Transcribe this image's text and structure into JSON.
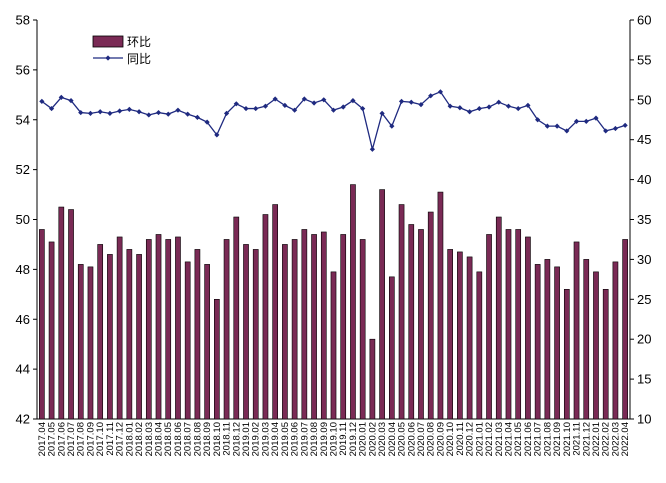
{
  "chart_data": {
    "type": "bar+line",
    "legend": {
      "bar_label": "环比",
      "line_label": "同比",
      "placement": "top-left"
    },
    "colors": {
      "bar": "#7a2a55",
      "bar_edge": "#000000",
      "line": "#1f2a80",
      "marker": "#1f2a80"
    },
    "categories": [
      "2017.04",
      "2017.05",
      "2017.06",
      "2017.07",
      "2017.08",
      "2017.09",
      "2017.10",
      "2017.11",
      "2017.12",
      "2018.01",
      "2018.02",
      "2018.03",
      "2018.04",
      "2018.05",
      "2018.06",
      "2018.07",
      "2018.08",
      "2018.09",
      "2018.10",
      "2018.11",
      "2018.12",
      "2019.01",
      "2019.02",
      "2019.03",
      "2019.04",
      "2019.05",
      "2019.06",
      "2019.07",
      "2019.08",
      "2019.09",
      "2019.10",
      "2019.11",
      "2019.12",
      "2020.01",
      "2020.02",
      "2020.03",
      "2020.04",
      "2020.05",
      "2020.06",
      "2020.07",
      "2020.08",
      "2020.09",
      "2020.10",
      "2020.11",
      "2020.12",
      "2021.01",
      "2021.02",
      "2021.03",
      "2021.04",
      "2021.05",
      "2021.06",
      "2021.07",
      "2021.08",
      "2021.09",
      "2021.10",
      "2021.11",
      "2021.12",
      "2022.01",
      "2022.02",
      "2022.03",
      "2022.04"
    ],
    "series": [
      {
        "name": "环比",
        "type": "bar",
        "axis": "left",
        "values": [
          49.6,
          49.1,
          50.5,
          50.4,
          48.2,
          48.1,
          49.0,
          48.6,
          49.3,
          48.8,
          48.6,
          49.2,
          49.4,
          49.2,
          49.3,
          48.3,
          48.8,
          48.2,
          46.8,
          49.2,
          50.1,
          49.0,
          48.8,
          50.2,
          50.6,
          49.0,
          49.2,
          49.6,
          49.4,
          49.5,
          47.9,
          49.4,
          51.4,
          49.2,
          45.2,
          51.2,
          47.7,
          50.6,
          49.8,
          49.6,
          50.3,
          51.1,
          48.8,
          48.7,
          48.5,
          47.9,
          49.4,
          50.1,
          49.6,
          49.6,
          49.3,
          48.2,
          48.4,
          48.1,
          47.2,
          49.1,
          48.4,
          47.9,
          47.2,
          48.3,
          49.2
        ]
      },
      {
        "name": "同比",
        "type": "line",
        "axis": "right",
        "values": [
          49.8,
          48.9,
          50.3,
          49.9,
          48.4,
          48.3,
          48.5,
          48.3,
          48.6,
          48.8,
          48.5,
          48.1,
          48.4,
          48.2,
          48.7,
          48.2,
          47.8,
          47.2,
          45.6,
          48.3,
          49.5,
          48.9,
          48.9,
          49.2,
          50.1,
          49.3,
          48.7,
          50.1,
          49.6,
          50.0,
          48.7,
          49.1,
          49.9,
          48.9,
          43.8,
          48.3,
          46.7,
          49.8,
          49.7,
          49.4,
          50.5,
          51.0,
          49.2,
          49.0,
          48.5,
          48.9,
          49.1,
          49.7,
          49.2,
          48.9,
          49.3,
          47.5,
          46.7,
          46.7,
          46.1,
          47.3,
          47.3,
          47.7,
          46.1,
          46.4,
          46.8
        ]
      }
    ],
    "y_left": {
      "min": 42,
      "max": 58,
      "ticks": [
        42,
        44,
        46,
        48,
        50,
        52,
        54,
        56,
        58
      ]
    },
    "y_right": {
      "min": 10,
      "max": 60,
      "ticks": [
        10,
        15,
        20,
        25,
        30,
        35,
        40,
        45,
        50,
        55,
        60
      ]
    },
    "grid": false
  }
}
